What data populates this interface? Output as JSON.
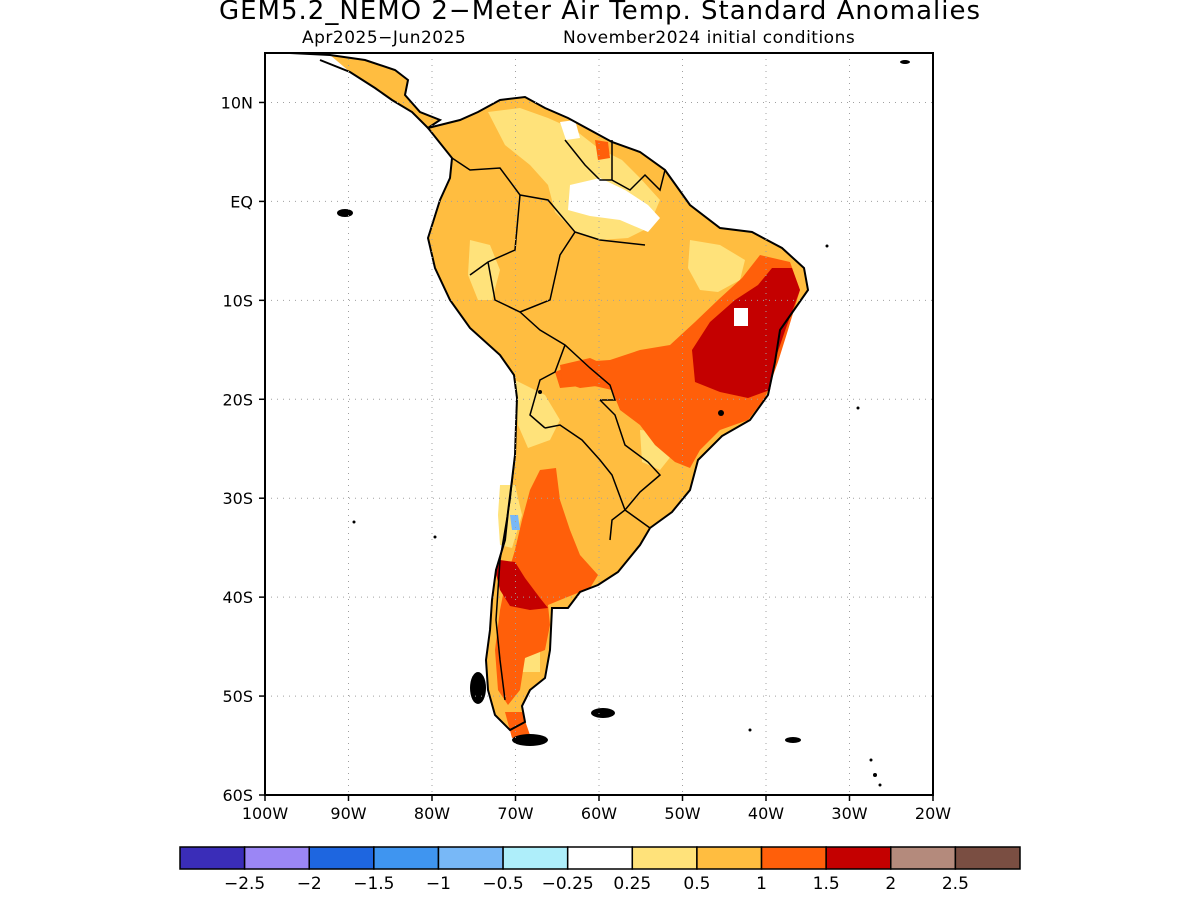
{
  "title": "GEM5.2_NEMO 2−Meter Air Temp. Standard Anomalies",
  "subtitle_period": "Apr2025−Jun2025",
  "subtitle_init": "November2024 initial conditions",
  "map": {
    "lon_range": [
      -100,
      -20
    ],
    "lat_range": [
      -60,
      15
    ],
    "lon_labels": [
      "100W",
      "90W",
      "80W",
      "70W",
      "60W",
      "50W",
      "40W",
      "30W",
      "20W"
    ],
    "lat_labels": [
      "10N",
      "EQ",
      "10S",
      "20S",
      "30S",
      "40S",
      "50S",
      "60S"
    ],
    "region": "South America",
    "grid_lines": "dotted"
  },
  "legend": {
    "colors": [
      "#3a2db8",
      "#9b86f5",
      "#1e66e0",
      "#3f95f0",
      "#78b8f7",
      "#aeeefa",
      "#ffffff",
      "#ffe27a",
      "#ffbd40",
      "#ff5f0a",
      "#c40000",
      "#b48a7c",
      "#7a4e42"
    ],
    "labels": [
      "−2.5",
      "−2",
      "−1.5",
      "−1",
      "−0.5",
      "−0.25",
      "0.25",
      "0.5",
      "1",
      "1.5",
      "2",
      "2.5"
    ]
  },
  "colors": {
    "land_outline": "#000000",
    "grid": "#a0a0a0"
  }
}
